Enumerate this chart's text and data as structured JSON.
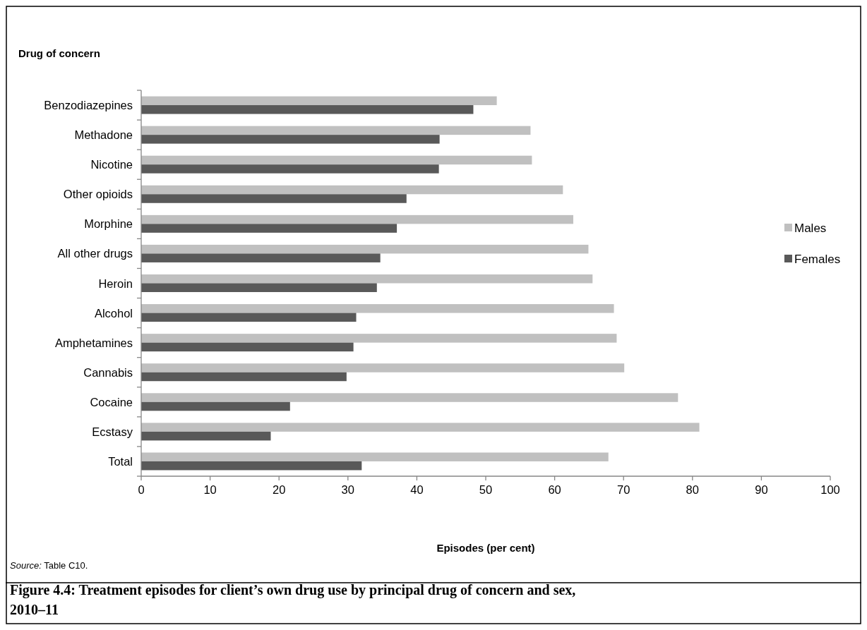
{
  "chart_data": {
    "type": "bar",
    "orientation": "horizontal",
    "title": "Figure 4.4: Treatment episodes for client’s own drug use by principal drug of concern and sex, 2010–11",
    "ylabel": "Drug of concern",
    "xlabel": "Episodes (per cent)",
    "categories": [
      "Benzodiazepines",
      "Methadone",
      "Nicotine",
      "Other opioids",
      "Morphine",
      "All other drugs",
      "Heroin",
      "Alcohol",
      "Amphetamines",
      "Cannabis",
      "Cocaine",
      "Ecstasy",
      "Total"
    ],
    "series": [
      {
        "name": "Males",
        "color": "#c0c0c0",
        "values": [
          51.6,
          56.5,
          56.7,
          61.2,
          62.7,
          64.9,
          65.5,
          68.6,
          69.0,
          70.1,
          77.9,
          81.0,
          67.8
        ]
      },
      {
        "name": "Females",
        "color": "#595959",
        "values": [
          48.2,
          43.3,
          43.2,
          38.5,
          37.1,
          34.7,
          34.2,
          31.2,
          30.8,
          29.8,
          21.6,
          18.8,
          32.0
        ]
      }
    ],
    "xlim": [
      0,
      100
    ],
    "xticks": [
      0,
      10,
      20,
      30,
      40,
      50,
      60,
      70,
      80,
      90,
      100
    ],
    "grid": false,
    "legend": "right",
    "annotations": [
      "Source: Table C10."
    ]
  }
}
